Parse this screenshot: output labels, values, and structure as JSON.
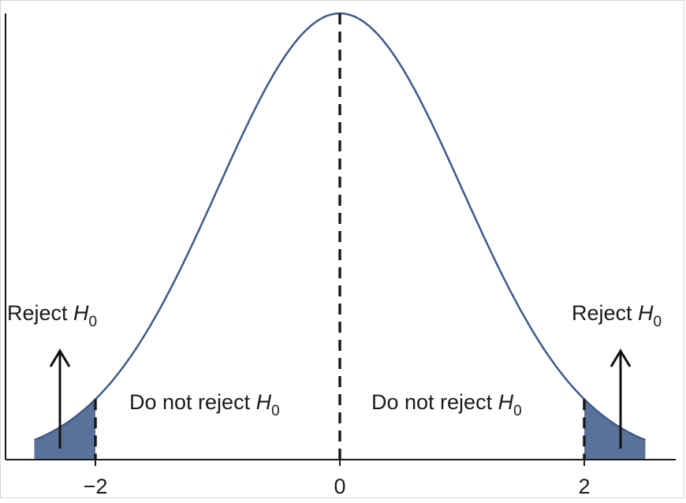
{
  "chart_data": {
    "type": "area",
    "distribution": "standard-normal",
    "title": "",
    "xlabel": "",
    "ylabel": "",
    "xlim": [
      -2.5,
      2.5
    ],
    "x_ticks": [
      {
        "value": -2,
        "label": "−2"
      },
      {
        "value": 0,
        "label": "0"
      },
      {
        "value": 2,
        "label": "2"
      }
    ],
    "critical_values": [
      -2,
      2
    ],
    "center_line": 0,
    "shaded_tails": [
      [
        -2.5,
        -2
      ],
      [
        2,
        2.5
      ]
    ],
    "regions": [
      {
        "name": "left-reject",
        "text": "Reject ",
        "var": "H",
        "sub": "0",
        "arrow": true
      },
      {
        "name": "left-do-not-reject",
        "text": "Do not reject ",
        "var": "H",
        "sub": "0",
        "arrow": false
      },
      {
        "name": "right-do-not-reject",
        "text": "Do not reject ",
        "var": "H",
        "sub": "0",
        "arrow": false
      },
      {
        "name": "right-reject",
        "text": "Reject ",
        "var": "H",
        "sub": "0",
        "arrow": true
      }
    ],
    "colors": {
      "curve": "#3e5a8c",
      "tail_fill": "#5a7299",
      "axis": "#1a1a1a",
      "dashed": "#1a1a1a"
    }
  }
}
